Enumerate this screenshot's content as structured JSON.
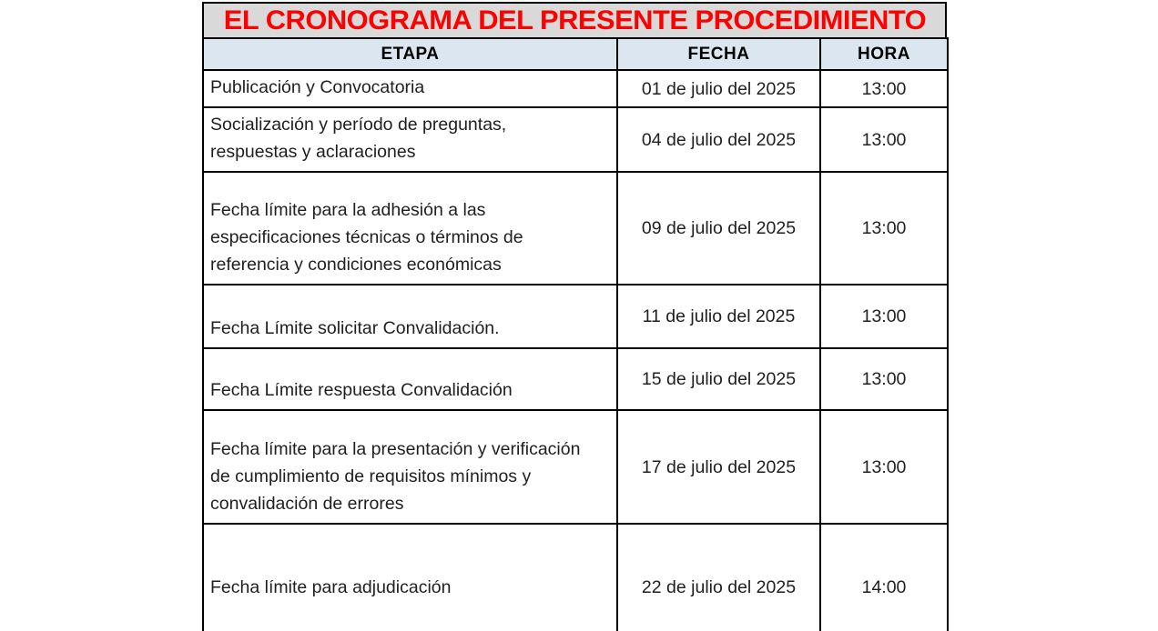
{
  "title": "EL CRONOGRAMA DEL PRESENTE PROCEDIMIENTO",
  "table": {
    "headers": {
      "etapa": "ETAPA",
      "fecha": "FECHA",
      "hora": "HORA"
    },
    "rows": [
      {
        "etapa": "Publicación y Convocatoria",
        "fecha": "01 de julio del 2025",
        "hora": "13:00"
      },
      {
        "etapa": "Socialización y período de preguntas, respuestas y aclaraciones",
        "fecha": "04 de julio del 2025",
        "hora": "13:00"
      },
      {
        "etapa": "Fecha límite para la adhesión a las especificaciones técnicas o términos de referencia y condiciones económicas",
        "fecha": "09 de julio del 2025",
        "hora": "13:00"
      },
      {
        "etapa": "Fecha Límite solicitar Convalidación.",
        "fecha": "11 de julio del 2025",
        "hora": "13:00"
      },
      {
        "etapa": "Fecha Límite respuesta Convalidación",
        "fecha": "15 de julio del 2025",
        "hora": "13:00"
      },
      {
        "etapa": "Fecha límite para la presentación y verificación de cumplimiento de requisitos mínimos y convalidación de errores",
        "fecha": "17 de julio del 2025",
        "hora": "13:00"
      },
      {
        "etapa": "Fecha límite para adjudicación",
        "fecha": "22 de julio del 2025",
        "hora": "14:00"
      }
    ]
  },
  "colors": {
    "title_text": "#ff0000",
    "title_bg": "#d9d9d9",
    "header_bg": "#dce6f1",
    "border": "#000000"
  }
}
